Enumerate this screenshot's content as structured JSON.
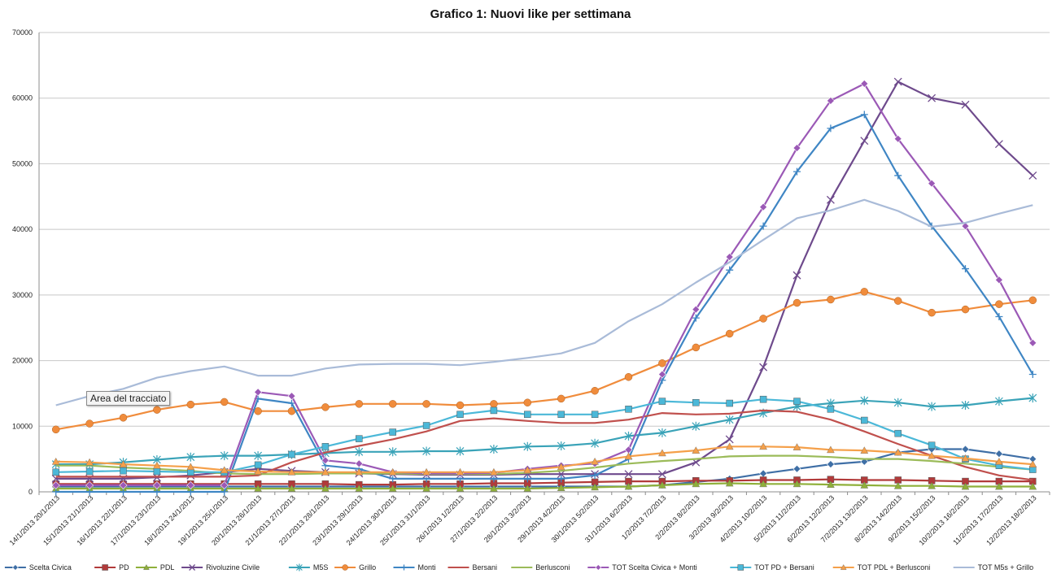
{
  "chart_data": {
    "type": "line",
    "title": "Grafico 1: Nuovi like per settimana",
    "xlabel": "",
    "ylabel": "",
    "ylim": [
      0,
      70000
    ],
    "yticks": [
      "0",
      "10000",
      "20000",
      "30000",
      "40000",
      "50000",
      "60000",
      "70000"
    ],
    "grid": true,
    "legend_position": "bottom",
    "categories": [
      "14/1/2013 20/1/2013",
      "15/1/2013 21/1/2013",
      "16/1/2013 22/1/2013",
      "17/1/2013 23/1/2013",
      "18/1/2013 24/1/2013",
      "19/1/2013 25/1/2013",
      "20/1/2013 26/1/2013",
      "21/1/2013 27/1/2013",
      "22/1/2013 28/1/2013",
      "23/1/2013 29/1/2013",
      "24/1/2013 30/1/2013",
      "25/1/2013 31/1/2013",
      "26/1/2013 1/2/2013",
      "27/1/2013 2/2/2013",
      "28/1/2013 3/2/2013",
      "29/1/2013 4/2/2013",
      "30/1/2013 5/2/2013",
      "31/1/2013 6/2/2013",
      "1/2/2013 7/2/2013",
      "2/2/2013 8/2/2013",
      "3/2/2013 9/2/2013",
      "4/2/2013 10/2/2013",
      "5/2/2013 11/2/2013",
      "6/2/2013 12/2/2013",
      "7/2/2013 13/2/2013",
      "8/2/2013 14/2/2013",
      "9/2/2013 15/2/2013",
      "10/2/2013 16/2/2013",
      "11/2/2013 17/2/2013",
      "12/2/2013 18/2/2013"
    ],
    "series": [
      {
        "name": "Scelta Civica",
        "color": "#3f6fa6",
        "marker": "diamond",
        "values": [
          800,
          800,
          800,
          800,
          800,
          800,
          800,
          800,
          800,
          800,
          800,
          800,
          800,
          800,
          800,
          800,
          800,
          800,
          1000,
          1500,
          2000,
          2800,
          3500,
          4200,
          4600,
          6000,
          6500,
          6500,
          5800,
          5000
        ]
      },
      {
        "name": "PD",
        "color": "#b23a3a",
        "marker": "square",
        "values": [
          1200,
          1200,
          1200,
          1200,
          1200,
          1200,
          1200,
          1200,
          1200,
          1100,
          1100,
          1200,
          1200,
          1300,
          1300,
          1400,
          1500,
          1600,
          1600,
          1700,
          1700,
          1800,
          1800,
          1900,
          1800,
          1800,
          1700,
          1600,
          1600,
          1600
        ]
      },
      {
        "name": "PDL",
        "color": "#8fb03a",
        "marker": "triangle",
        "values": [
          500,
          500,
          500,
          500,
          500,
          500,
          500,
          500,
          500,
          500,
          500,
          500,
          500,
          500,
          500,
          600,
          700,
          800,
          1000,
          1200,
          1300,
          1200,
          1200,
          1100,
          1000,
          900,
          900,
          800,
          800,
          800
        ]
      },
      {
        "name": "Rivoluzine Civile",
        "color": "#6e4a8c",
        "marker": "x",
        "values": [
          2000,
          2000,
          2000,
          2200,
          2500,
          3000,
          3500,
          3200,
          3000,
          2800,
          2700,
          2600,
          2600,
          2600,
          2700,
          2700,
          2700,
          2700,
          2700,
          4500,
          8000,
          19000,
          33000,
          44500,
          53500,
          62500,
          60000,
          59000,
          53000,
          48200
        ]
      },
      {
        "name": "M5S",
        "color": "#3aa3b8",
        "marker": "star",
        "values": [
          4200,
          4200,
          4500,
          4900,
          5300,
          5500,
          5500,
          5700,
          5900,
          6100,
          6100,
          6200,
          6200,
          6500,
          6900,
          7000,
          7400,
          8500,
          9000,
          10000,
          11000,
          12000,
          13000,
          13500,
          13900,
          13600,
          13000,
          13200,
          13800,
          14300
        ]
      },
      {
        "name": "Grillo",
        "color": "#f08c3c",
        "marker": "circle",
        "values": [
          9500,
          10400,
          11300,
          12500,
          13300,
          13700,
          12300,
          12300,
          12900,
          13400,
          13400,
          13400,
          13200,
          13400,
          13600,
          14200,
          15400,
          17500,
          19600,
          22000,
          24100,
          26400,
          28800,
          29300,
          30500,
          29100,
          27300,
          27800,
          28600,
          29200
        ]
      },
      {
        "name": "Monti",
        "color": "#3f86c4",
        "marker": "plus",
        "values": [
          0,
          0,
          0,
          0,
          0,
          0,
          14200,
          13500,
          4000,
          3500,
          2000,
          2000,
          2000,
          2000,
          2000,
          2000,
          2500,
          5000,
          17000,
          26500,
          33800,
          40500,
          48800,
          55400,
          57500,
          48200,
          40500,
          34000,
          26700,
          17900
        ]
      },
      {
        "name": "Bersani",
        "color": "#c0504d",
        "marker": "none",
        "values": [
          2300,
          2300,
          2300,
          2300,
          2300,
          2300,
          2500,
          4500,
          6000,
          7000,
          8000,
          9200,
          10800,
          11200,
          10800,
          10500,
          10500,
          11000,
          12000,
          11800,
          11900,
          12400,
          12200,
          11000,
          9200,
          7300,
          5500,
          3800,
          2500,
          1800
        ]
      },
      {
        "name": "Berlusconi",
        "color": "#9bbb59",
        "marker": "none",
        "values": [
          4000,
          4000,
          3700,
          3500,
          3200,
          2800,
          2700,
          2700,
          2800,
          2800,
          2800,
          2700,
          2700,
          2700,
          2900,
          3200,
          3700,
          4300,
          4700,
          5000,
          5400,
          5500,
          5500,
          5300,
          5000,
          5000,
          4700,
          4300,
          3800,
          3400
        ]
      },
      {
        "name": "TOT Scelta Civica + Monti",
        "color": "#9b59b6",
        "marker": "diamond",
        "values": [
          1000,
          1000,
          1000,
          1000,
          1000,
          1000,
          15200,
          14600,
          4800,
          4300,
          3000,
          2800,
          2800,
          2900,
          3500,
          4000,
          4300,
          6400,
          17900,
          27800,
          35800,
          43400,
          52400,
          59600,
          62200,
          53800,
          47000,
          40500,
          32300,
          22700
        ]
      },
      {
        "name": "TOT PD + Bersani",
        "color": "#4bb8d8",
        "marker": "square",
        "values": [
          3000,
          3100,
          3200,
          3100,
          3000,
          3000,
          4100,
          5700,
          6900,
          8100,
          9100,
          10100,
          11800,
          12400,
          11800,
          11800,
          11800,
          12600,
          13800,
          13600,
          13500,
          14100,
          13800,
          12600,
          10900,
          8900,
          7100,
          5000,
          4000,
          3400
        ]
      },
      {
        "name": "TOT PDL + Berlusconi",
        "color": "#f5a04a",
        "marker": "triangle",
        "values": [
          4600,
          4500,
          4200,
          4000,
          3800,
          3300,
          3100,
          3000,
          3000,
          3000,
          3000,
          3000,
          3000,
          3000,
          3300,
          3800,
          4600,
          5400,
          5900,
          6300,
          6900,
          6900,
          6800,
          6400,
          6300,
          6000,
          5500,
          5100,
          4600,
          4200
        ]
      },
      {
        "name": "TOT M5s + Grillo",
        "color": "#a9bbd8",
        "marker": "none",
        "values": [
          13200,
          14600,
          15700,
          17400,
          18400,
          19100,
          17700,
          17700,
          18800,
          19400,
          19500,
          19500,
          19300,
          19800,
          20400,
          21100,
          22700,
          26000,
          28600,
          31900,
          35000,
          38400,
          41700,
          42900,
          44500,
          42800,
          40400,
          41000,
          42400,
          43700
        ]
      }
    ]
  },
  "tooltip": {
    "label": "Area del tracciato"
  }
}
